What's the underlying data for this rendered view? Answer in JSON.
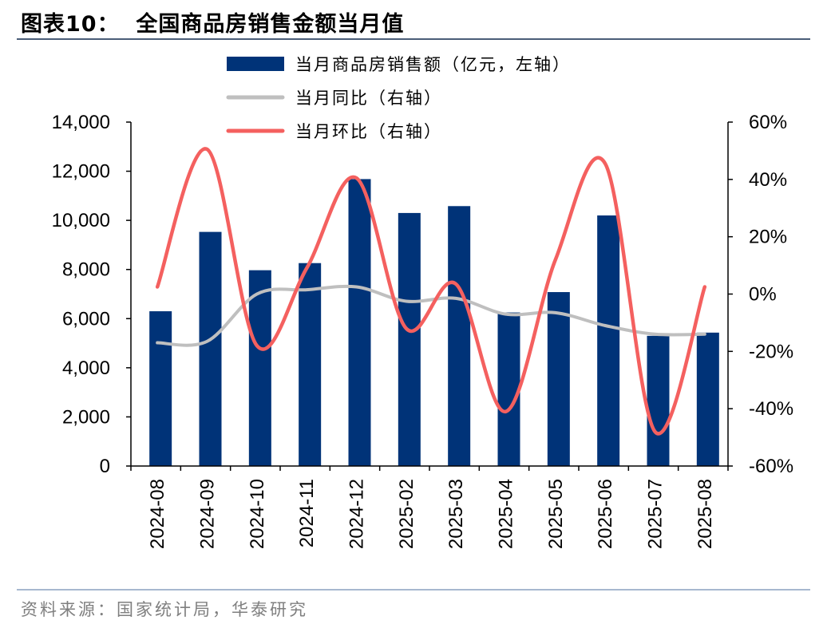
{
  "title": "图表10：  全国商品房销售金额当月值",
  "source": "资料来源：国家统计局，华泰研究",
  "colors": {
    "bar": "#003378",
    "yoy": "#bfbfbf",
    "mom": "#f4605f",
    "title_rule": "#4a5d78",
    "source_rule": "#a7b8cf"
  },
  "chart_data": {
    "type": "bar",
    "categories": [
      "2024-08",
      "2024-09",
      "2024-10",
      "2024-11",
      "2024-12",
      "2025-02",
      "2025-03",
      "2025-04",
      "2025-05",
      "2025-06",
      "2025-07",
      "2025-08"
    ],
    "series": [
      {
        "name": "当月商品房销售额（亿元，左轴）",
        "type": "bar",
        "axis": "left",
        "values": [
          6300,
          9530,
          7970,
          8260,
          11680,
          10300,
          10580,
          6250,
          7080,
          10200,
          5300,
          5430
        ]
      },
      {
        "name": "当月同比（右轴）",
        "type": "line",
        "axis": "right",
        "values": [
          -17.0,
          -16.5,
          0.0,
          1.5,
          2.5,
          -2.5,
          -1.5,
          -7.0,
          -6.5,
          -11.0,
          -14.0,
          -14.0
        ]
      },
      {
        "name": "当月环比（右轴）",
        "type": "line",
        "axis": "right",
        "values": [
          2.5,
          50.5,
          -18.0,
          9.0,
          40.5,
          -12.0,
          3.5,
          -41.0,
          12.0,
          45.5,
          -48.0,
          2.5
        ]
      }
    ],
    "y_left": {
      "ylim": [
        0,
        14000
      ],
      "ticks": [
        0,
        2000,
        4000,
        6000,
        8000,
        10000,
        12000,
        14000
      ],
      "tick_labels": [
        "0",
        "2,000",
        "4,000",
        "6,000",
        "8,000",
        "10,000",
        "12,000",
        "14,000"
      ]
    },
    "y_right": {
      "ylim": [
        -60,
        60
      ],
      "ticks": [
        -60,
        -40,
        -20,
        0,
        20,
        40,
        60
      ],
      "tick_labels": [
        "-60%",
        "-40%",
        "-20%",
        "0%",
        "20%",
        "40%",
        "60%"
      ]
    },
    "legend_position": "top",
    "grid": false
  }
}
